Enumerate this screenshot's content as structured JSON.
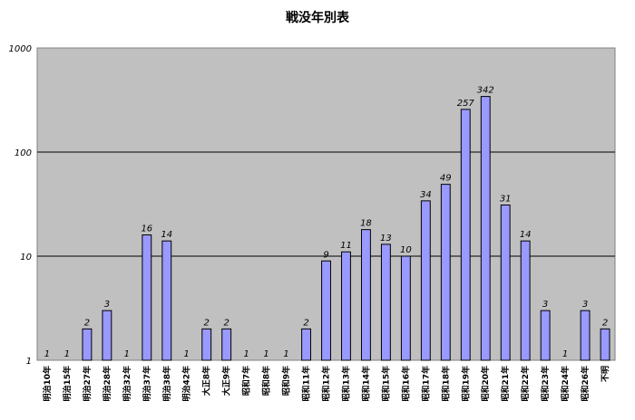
{
  "chart_data": {
    "type": "bar",
    "title": "戦没年別表",
    "xlabel": "",
    "ylabel": "",
    "yscale": "log",
    "ylim": [
      1,
      1000
    ],
    "yticks": [
      1,
      10,
      100,
      1000
    ],
    "grid": true,
    "categories": [
      "明治10年",
      "明治15年",
      "明治27年",
      "明治28年",
      "明治32年",
      "明治37年",
      "明治38年",
      "明治42年",
      "大正8年",
      "大正9年",
      "昭和7年",
      "昭和8年",
      "昭和9年",
      "昭和11年",
      "昭和12年",
      "昭和13年",
      "昭和14年",
      "昭和15年",
      "昭和16年",
      "昭和17年",
      "昭和18年",
      "昭和19年",
      "昭和20年",
      "昭和21年",
      "昭和22年",
      "昭和23年",
      "昭和24年",
      "昭和26年",
      "不明"
    ],
    "values": [
      1,
      1,
      2,
      3,
      1,
      16,
      14,
      1,
      2,
      2,
      1,
      1,
      1,
      2,
      9,
      11,
      18,
      13,
      10,
      34,
      49,
      257,
      342,
      31,
      14,
      3,
      1,
      3,
      2
    ],
    "bar_color": "#9999ff",
    "plot_background": "#c0c0c0"
  }
}
